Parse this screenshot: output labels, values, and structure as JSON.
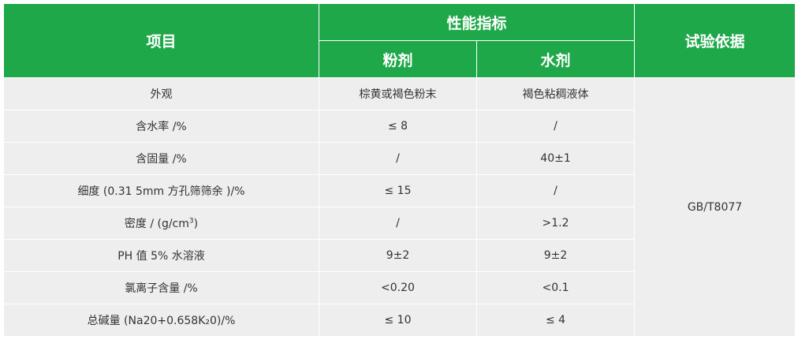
{
  "header": {
    "item": "项目",
    "performance": "性能指标",
    "powder": "粉剂",
    "liquid": "水剂",
    "basis": "试验依据"
  },
  "rows": [
    {
      "item": "外观",
      "powder": "棕黄或褐色粉末",
      "liquid": "褐色粘稠液体"
    },
    {
      "item": "含水率 /%",
      "powder": "≤ 8",
      "liquid": "/"
    },
    {
      "item": "含固量 /%",
      "powder": "/",
      "liquid": "40±1"
    },
    {
      "item": "细度 (0.31 5mm 方孔筛筛余 )/%",
      "powder": "≤ 15",
      "liquid": "/"
    },
    {
      "item": "密度 / (g/cm",
      "item_sup": "3",
      "item_tail": ")",
      "powder": "/",
      "liquid": ">1.2"
    },
    {
      "item": "PH 值 5% 水溶液",
      "powder": "9±2",
      "liquid": "9±2"
    },
    {
      "item": "氯离子含量 /%",
      "powder": "<0.20",
      "liquid": "<0.1"
    },
    {
      "item": "总碱量 (Na20+0.658K₂0)/%",
      "powder": "≤ 10",
      "liquid": "≤ 4"
    }
  ],
  "basis_value": "GB/T8077",
  "colors": {
    "header_bg": "#1fa84a",
    "row_bg": "#eeeeee",
    "text": "#333333"
  }
}
